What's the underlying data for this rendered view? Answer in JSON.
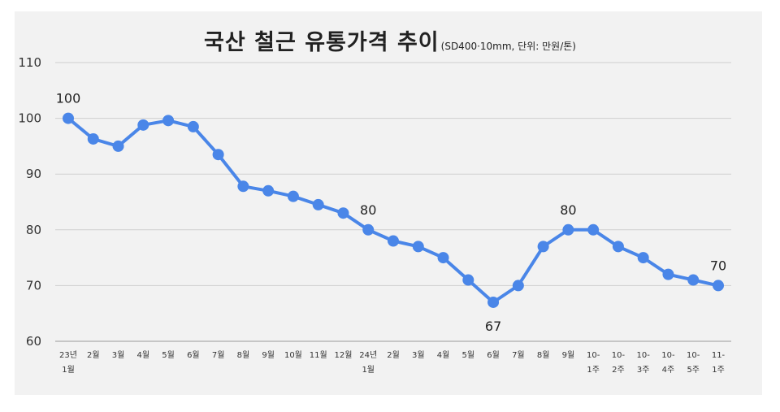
{
  "chart_data": {
    "type": "line",
    "title": "국산 철근 유통가격 추이",
    "subtitle": "(SD400·10mm, 단위: 만원/톤)",
    "xlabel": "",
    "ylabel": "",
    "ylim": [
      60,
      110
    ],
    "yticks": [
      60,
      70,
      80,
      90,
      100,
      110
    ],
    "grid": true,
    "line_color": "#4a86e8",
    "categories": [
      [
        "23년",
        "1월"
      ],
      [
        "2월"
      ],
      [
        "3월"
      ],
      [
        "4월"
      ],
      [
        "5월"
      ],
      [
        "6월"
      ],
      [
        "7월"
      ],
      [
        "8월"
      ],
      [
        "9월"
      ],
      [
        "10월"
      ],
      [
        "11월"
      ],
      [
        "12월"
      ],
      [
        "24년",
        "1월"
      ],
      [
        "2월"
      ],
      [
        "3월"
      ],
      [
        "4월"
      ],
      [
        "5월"
      ],
      [
        "6월"
      ],
      [
        "7월"
      ],
      [
        "8월"
      ],
      [
        "9월"
      ],
      [
        "10-",
        "1주"
      ],
      [
        "10-",
        "2주"
      ],
      [
        "10-",
        "3주"
      ],
      [
        "10-",
        "4주"
      ],
      [
        "10-",
        "5주"
      ],
      [
        "11-",
        "1주"
      ]
    ],
    "values": [
      100,
      96.3,
      95,
      98.8,
      99.6,
      98.5,
      93.5,
      87.8,
      87,
      86,
      84.5,
      83,
      80,
      78,
      77,
      75,
      71,
      67,
      70,
      77,
      80,
      80,
      77,
      75,
      72,
      71,
      70
    ],
    "data_labels": [
      {
        "index": 0,
        "text": "100",
        "pos": "above"
      },
      {
        "index": 12,
        "text": "80",
        "pos": "above"
      },
      {
        "index": 17,
        "text": "67",
        "pos": "below"
      },
      {
        "index": 20,
        "text": "80",
        "pos": "above"
      },
      {
        "index": 26,
        "text": "70",
        "pos": "above"
      }
    ]
  }
}
